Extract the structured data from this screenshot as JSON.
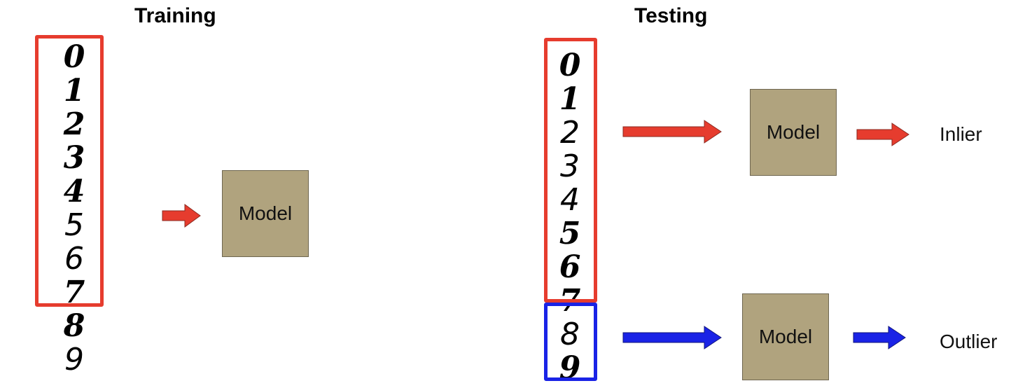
{
  "training": {
    "title": "Training",
    "digits": [
      "0",
      "1",
      "2",
      "3",
      "4",
      "5",
      "6",
      "7",
      "8",
      "9"
    ],
    "model_label": "Model"
  },
  "testing": {
    "title": "Testing",
    "digits": [
      "0",
      "1",
      "2",
      "3",
      "4",
      "5",
      "6",
      "7",
      "8",
      "9"
    ],
    "inlier_model_label": "Model",
    "outlier_model_label": "Model",
    "inlier_label": "Inlier",
    "outlier_label": "Outlier"
  },
  "colors": {
    "inlier_accent": "#e63c2e",
    "outlier_accent": "#1a23e6",
    "model_fill": "#b0a37e"
  }
}
